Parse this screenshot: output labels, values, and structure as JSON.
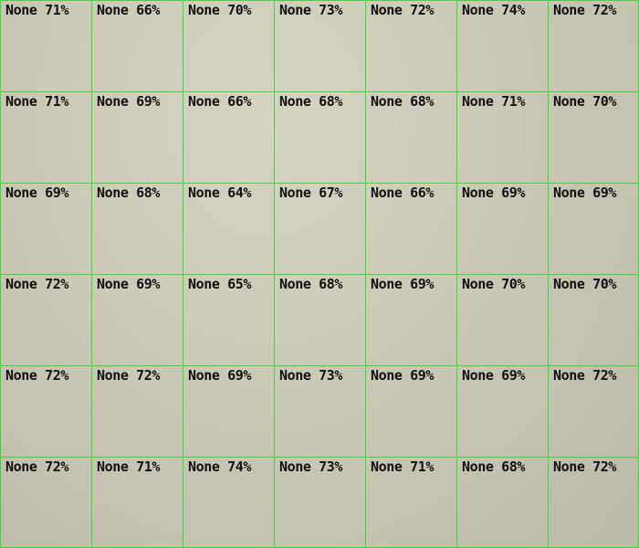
{
  "grid": {
    "rows": [
      {
        "cells": [
          {
            "label": "None",
            "score": "71%"
          },
          {
            "label": "None",
            "score": "66%"
          },
          {
            "label": "None",
            "score": "70%"
          },
          {
            "label": "None",
            "score": "73%"
          },
          {
            "label": "None",
            "score": "72%"
          },
          {
            "label": "None",
            "score": "74%"
          },
          {
            "label": "None",
            "score": "72%"
          }
        ]
      },
      {
        "cells": [
          {
            "label": "None",
            "score": "71%"
          },
          {
            "label": "None",
            "score": "69%"
          },
          {
            "label": "None",
            "score": "66%"
          },
          {
            "label": "None",
            "score": "68%"
          },
          {
            "label": "None",
            "score": "68%"
          },
          {
            "label": "None",
            "score": "71%"
          },
          {
            "label": "None",
            "score": "70%"
          }
        ]
      },
      {
        "cells": [
          {
            "label": "None",
            "score": "69%"
          },
          {
            "label": "None",
            "score": "68%"
          },
          {
            "label": "None",
            "score": "64%"
          },
          {
            "label": "None",
            "score": "67%"
          },
          {
            "label": "None",
            "score": "66%"
          },
          {
            "label": "None",
            "score": "69%"
          },
          {
            "label": "None",
            "score": "69%"
          }
        ]
      },
      {
        "cells": [
          {
            "label": "None",
            "score": "72%"
          },
          {
            "label": "None",
            "score": "69%"
          },
          {
            "label": "None",
            "score": "65%"
          },
          {
            "label": "None",
            "score": "68%"
          },
          {
            "label": "None",
            "score": "69%"
          },
          {
            "label": "None",
            "score": "70%"
          },
          {
            "label": "None",
            "score": "70%"
          }
        ]
      },
      {
        "cells": [
          {
            "label": "None",
            "score": "72%"
          },
          {
            "label": "None",
            "score": "72%"
          },
          {
            "label": "None",
            "score": "69%"
          },
          {
            "label": "None",
            "score": "73%"
          },
          {
            "label": "None",
            "score": "69%"
          },
          {
            "label": "None",
            "score": "69%"
          },
          {
            "label": "None",
            "score": "72%"
          }
        ]
      },
      {
        "cells": [
          {
            "label": "None",
            "score": "72%"
          },
          {
            "label": "None",
            "score": "71%"
          },
          {
            "label": "None",
            "score": "74%"
          },
          {
            "label": "None",
            "score": "73%"
          },
          {
            "label": "None",
            "score": "71%"
          },
          {
            "label": "None",
            "score": "68%"
          },
          {
            "label": "None",
            "score": "72%"
          }
        ]
      }
    ],
    "colors": {
      "grid_line": "#33dd33",
      "label_text": "#111111"
    }
  }
}
